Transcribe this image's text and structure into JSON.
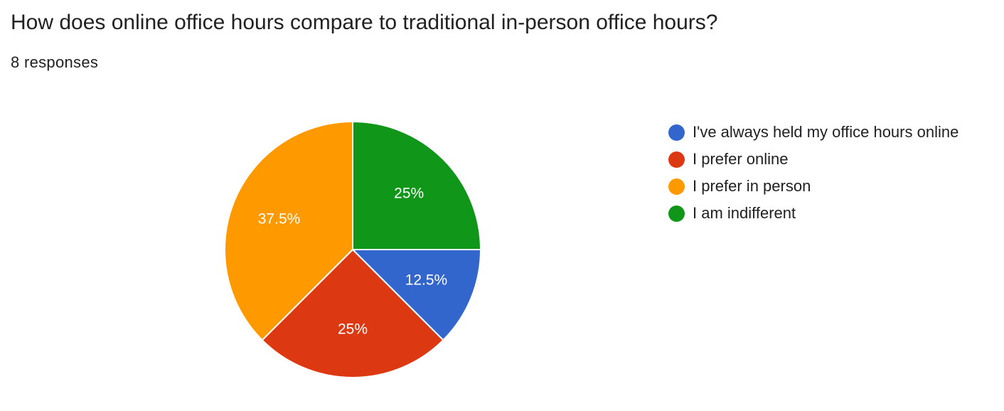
{
  "question": {
    "title": "How does online office hours compare to traditional in-person office hours?",
    "responses": "8 responses"
  },
  "chart_data": {
    "type": "pie",
    "total_responses": 8,
    "legend_position": "right",
    "slices": [
      {
        "label": "I've always held my office hours online",
        "value": 12.5,
        "display": "12.5%",
        "color": "#3366cc"
      },
      {
        "label": "I prefer online",
        "value": 25,
        "display": "25%",
        "color": "#dc3912"
      },
      {
        "label": "I prefer in person",
        "value": 37.5,
        "display": "37.5%",
        "color": "#ff9900"
      },
      {
        "label": "I am indifferent",
        "value": 25,
        "display": "25%",
        "color": "#109618"
      }
    ]
  }
}
